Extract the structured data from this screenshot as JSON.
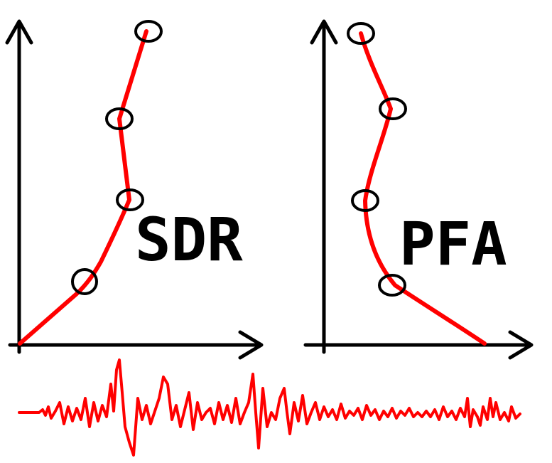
{
  "colors": {
    "curve": "#ff0000",
    "axis": "#000000",
    "signal": "#ff0000"
  },
  "panels": [
    {
      "label": "SDR"
    },
    {
      "label": "PFA"
    }
  ]
}
